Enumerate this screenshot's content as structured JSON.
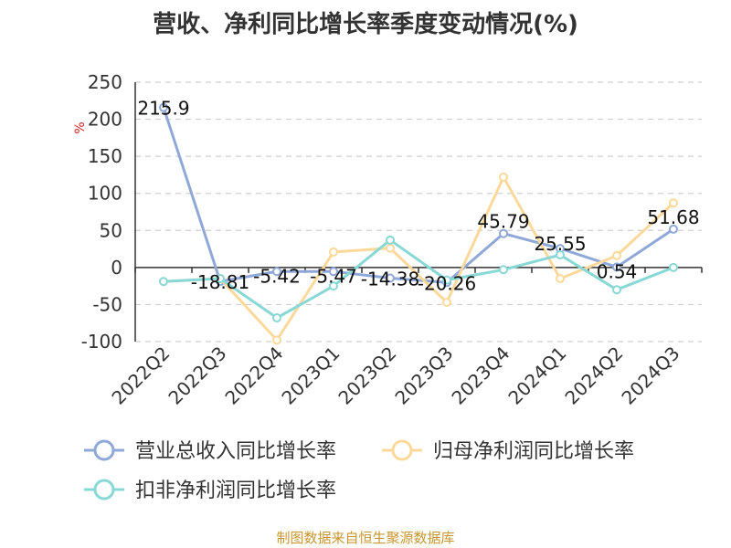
{
  "chart_data": {
    "type": "line",
    "title": "营收、净利同比增长率季度变动情况(%)",
    "ylabel": "%",
    "xlabel": "",
    "ylim": [
      -100,
      250
    ],
    "yticks": [
      -100,
      -50,
      0,
      50,
      100,
      150,
      200,
      250
    ],
    "categories": [
      "2022Q2",
      "2022Q3",
      "2022Q4",
      "2023Q1",
      "2023Q2",
      "2023Q3",
      "2023Q4",
      "2024Q1",
      "2024Q2",
      "2024Q3"
    ],
    "grid": "horizontal dashed",
    "legend_position": "bottom",
    "series": [
      {
        "name": "营业总收入同比增长率",
        "color": "#8fa8d8",
        "values": [
          215.9,
          -18.81,
          -5.42,
          -5.47,
          -14.38,
          -20.26,
          45.79,
          25.55,
          0.54,
          51.68
        ],
        "labels": [
          "215.9",
          "-18.81",
          "-5.42",
          "-5.47",
          "-14.38",
          "-20.26",
          "45.79",
          "25.55",
          "0.54",
          "51.68"
        ]
      },
      {
        "name": "归母净利润同比增长率",
        "color": "#fcd99a",
        "values": [
          -19,
          -15,
          -98,
          21,
          26,
          -47,
          122,
          -15,
          16,
          87
        ]
      },
      {
        "name": "扣非净利润同比增长率",
        "color": "#88d8d5",
        "values": [
          -19,
          -15,
          -68,
          -25,
          37,
          -17,
          -3,
          17,
          -30,
          0
        ]
      }
    ]
  },
  "source_note": "制图数据来自恒生聚源数据库"
}
